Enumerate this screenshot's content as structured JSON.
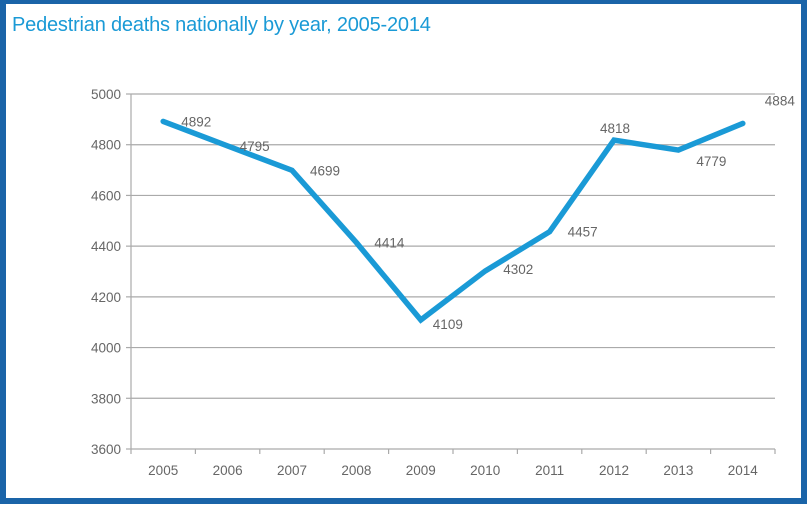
{
  "chart_data": {
    "type": "line",
    "title": "Pedestrian deaths nationally by year, 2005-2014",
    "xlabel": "",
    "ylabel": "",
    "categories": [
      "2005",
      "2006",
      "2007",
      "2008",
      "2009",
      "2010",
      "2011",
      "2012",
      "2013",
      "2014"
    ],
    "values": [
      4892,
      4795,
      4699,
      4414,
      4109,
      4302,
      4457,
      4818,
      4779,
      4884
    ],
    "ylim": [
      3600,
      5000
    ],
    "yticks": [
      3600,
      3800,
      4000,
      4200,
      4400,
      4600,
      4800,
      5000
    ],
    "grid": true,
    "data_labels": true,
    "line_color": "#1a9ad6",
    "border_color": "#1a64a8"
  }
}
